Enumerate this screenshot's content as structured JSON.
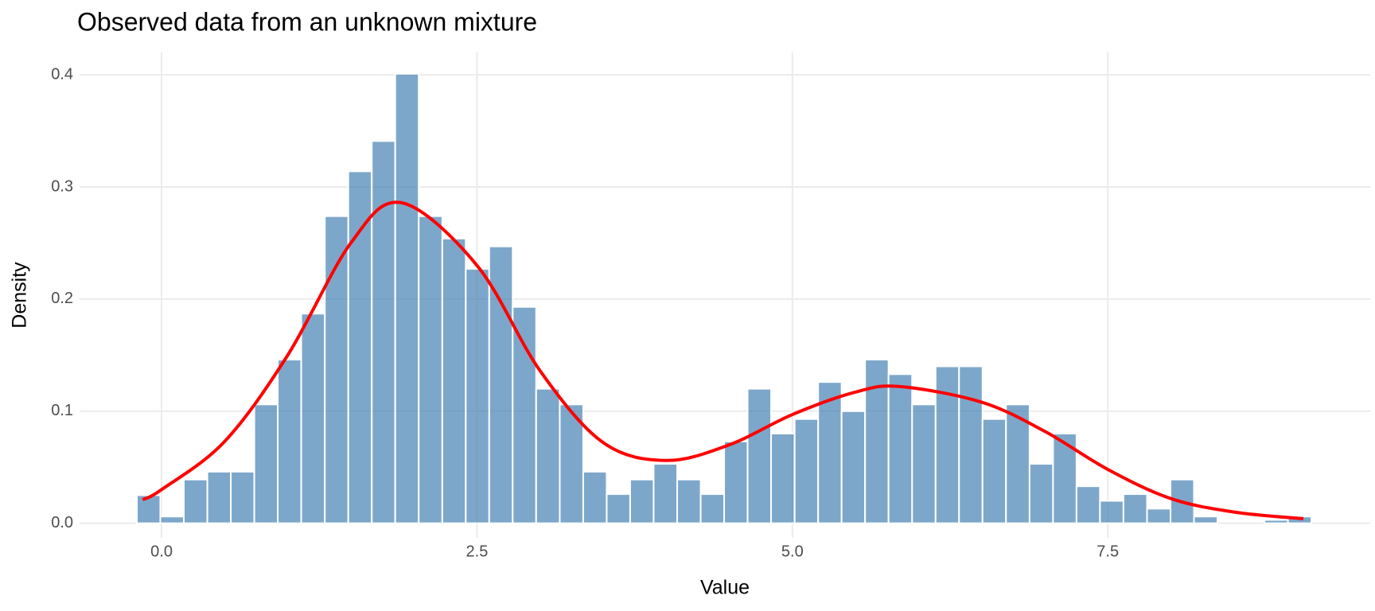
{
  "chart_data": {
    "type": "histogram",
    "title": "Observed data from an unknown mixture",
    "x_label": "Value",
    "y_label": "Density",
    "bins": [
      -0.196,
      -0.01,
      0.176,
      0.363,
      0.549,
      0.735,
      0.921,
      1.107,
      1.294,
      1.48,
      1.666,
      1.852,
      2.038,
      2.225,
      2.411,
      2.597,
      2.783,
      2.969,
      3.156,
      3.342,
      3.528,
      3.714,
      3.9,
      4.087,
      4.273,
      4.459,
      4.645,
      4.831,
      5.018,
      5.204,
      5.39,
      5.576,
      5.762,
      5.949,
      6.135,
      6.321,
      6.507,
      6.693,
      6.88,
      7.066,
      7.252,
      7.438,
      7.624,
      7.811,
      7.997,
      8.183,
      8.369,
      8.555,
      8.742,
      8.928,
      9.114
    ],
    "values": [
      0.025,
      0.006,
      0.039,
      0.046,
      0.046,
      0.106,
      0.146,
      0.187,
      0.274,
      0.314,
      0.341,
      0.401,
      0.274,
      0.254,
      0.227,
      0.247,
      0.193,
      0.12,
      0.106,
      0.046,
      0.026,
      0.039,
      0.053,
      0.039,
      0.026,
      0.073,
      0.12,
      0.08,
      0.093,
      0.126,
      0.1,
      0.146,
      0.133,
      0.106,
      0.14,
      0.14,
      0.093,
      0.106,
      0.053,
      0.08,
      0.033,
      0.02,
      0.026,
      0.013,
      0.039,
      0.006,
      0,
      0,
      0.003,
      0.006
    ],
    "color": "#4682b4",
    "curve": {
      "type": "line",
      "color": "#ff0000",
      "x": [
        -0.15,
        0,
        0.5,
        1.0,
        1.5,
        1.9,
        2.5,
        3.0,
        3.5,
        4.0,
        4.5,
        5.0,
        5.5,
        5.85,
        6.5,
        7.0,
        7.5,
        8.0,
        8.5,
        9.05
      ],
      "values": [
        0.021,
        0.03,
        0.073,
        0.15,
        0.25,
        0.286,
        0.23,
        0.136,
        0.072,
        0.056,
        0.07,
        0.097,
        0.117,
        0.122,
        0.108,
        0.082,
        0.048,
        0.022,
        0.01,
        0.004
      ]
    },
    "xlim": [
      -0.65,
      9.58
    ],
    "ylim": [
      -0.013,
      0.42
    ],
    "xticks": [
      {
        "value": 0,
        "label": "0.0"
      },
      2.5,
      {
        "value": 5,
        "label": "5.0"
      },
      7.5
    ],
    "yticks": [
      {
        "value": 0,
        "label": "0.0"
      },
      0.1,
      0.2,
      0.3,
      0.4
    ],
    "grid": true
  }
}
